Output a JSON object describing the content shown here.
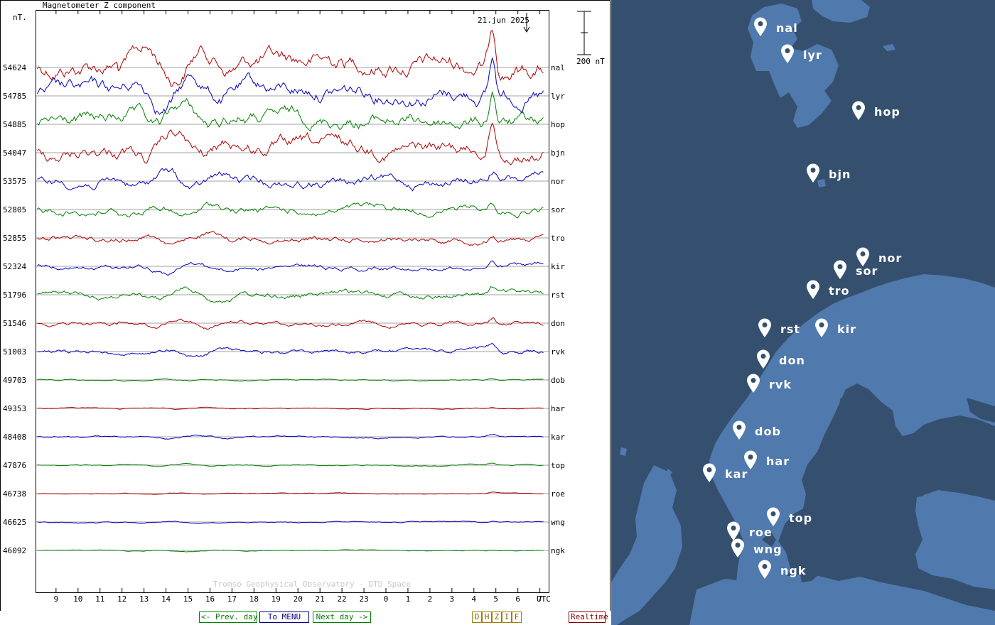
{
  "chart_data": {
    "type": "line",
    "title": "Magnetometer Z component",
    "ylabel": "nT.",
    "xlabel": "UTC",
    "date_label": "21.jun 2025",
    "scale_bar_label": "200 nT",
    "watermark": "Tromso Geophysical Observatory - DTU Space",
    "x_ticks": [
      "9",
      "10",
      "11",
      "12",
      "13",
      "14",
      "15",
      "16",
      "17",
      "18",
      "19",
      "20",
      "21",
      "22",
      "23",
      "0",
      "1",
      "2",
      "3",
      "4",
      "5",
      "6",
      "7"
    ],
    "x_tick_hours": [
      9,
      10,
      11,
      12,
      13,
      14,
      15,
      16,
      17,
      18,
      19,
      20,
      21,
      22,
      23,
      24,
      25,
      26,
      27,
      28,
      29,
      30,
      31
    ],
    "x_range_hours": [
      8.1,
      31.4
    ],
    "colors": {
      "red": "#b00000",
      "blue": "#0000c0",
      "green": "#008000",
      "grid": "#a0a0a0"
    },
    "series": [
      {
        "name": "nal",
        "baseline": "54624",
        "color": "red",
        "activity": 1.6
      },
      {
        "name": "lyr",
        "baseline": "54785",
        "color": "blue",
        "activity": 1.4
      },
      {
        "name": "hop",
        "baseline": "54885",
        "color": "green",
        "activity": 1.3
      },
      {
        "name": "bjn",
        "baseline": "54047",
        "color": "red",
        "activity": 1.3
      },
      {
        "name": "nor",
        "baseline": "53575",
        "color": "blue",
        "activity": 0.9
      },
      {
        "name": "sor",
        "baseline": "52805",
        "color": "green",
        "activity": 0.7
      },
      {
        "name": "tro",
        "baseline": "52855",
        "color": "red",
        "activity": 0.55
      },
      {
        "name": "kir",
        "baseline": "52324",
        "color": "blue",
        "activity": 0.45
      },
      {
        "name": "rst",
        "baseline": "51796",
        "color": "green",
        "activity": 0.55
      },
      {
        "name": "don",
        "baseline": "51546",
        "color": "red",
        "activity": 0.4
      },
      {
        "name": "rvk",
        "baseline": "51003",
        "color": "blue",
        "activity": 0.4
      },
      {
        "name": "dob",
        "baseline": "49703",
        "color": "green",
        "activity": 0.12
      },
      {
        "name": "har",
        "baseline": "49353",
        "color": "red",
        "activity": 0.1
      },
      {
        "name": "kar",
        "baseline": "48408",
        "color": "blue",
        "activity": 0.15
      },
      {
        "name": "top",
        "baseline": "47876",
        "color": "green",
        "activity": 0.12
      },
      {
        "name": "roe",
        "baseline": "46738",
        "color": "red",
        "activity": 0.08
      },
      {
        "name": "wng",
        "baseline": "46625",
        "color": "blue",
        "activity": 0.1
      },
      {
        "name": "ngk",
        "baseline": "46092",
        "color": "green",
        "activity": 0.08
      }
    ]
  },
  "nav": {
    "prev_day": "<- Prev. day",
    "menu": "To MENU",
    "next_day": "Next day ->",
    "components": [
      "D",
      "H",
      "Z",
      "I",
      "F"
    ],
    "realtime": "Realtime"
  },
  "map": {
    "stations": [
      {
        "name": "nal"
      },
      {
        "name": "lyr"
      },
      {
        "name": "hop"
      },
      {
        "name": "bjn"
      },
      {
        "name": "nor"
      },
      {
        "name": "sor"
      },
      {
        "name": "tro"
      },
      {
        "name": "rst"
      },
      {
        "name": "kir"
      },
      {
        "name": "don"
      },
      {
        "name": "rvk"
      },
      {
        "name": "dob"
      },
      {
        "name": "har"
      },
      {
        "name": "kar"
      },
      {
        "name": "top"
      },
      {
        "name": "roe"
      },
      {
        "name": "wng"
      },
      {
        "name": "ngk"
      }
    ],
    "colors": {
      "sea": "#35506f",
      "land": "#5079ad"
    }
  }
}
